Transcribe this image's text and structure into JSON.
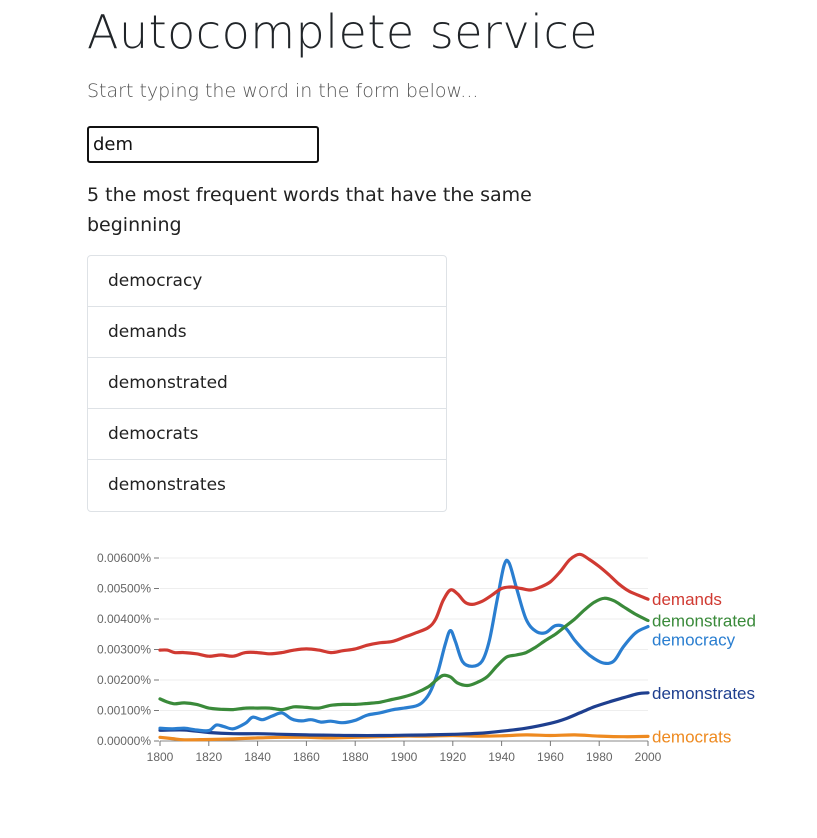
{
  "header": {
    "title": "Autocomplete service",
    "subtitle": "Start typing the word in the form below..."
  },
  "search": {
    "value": "dem",
    "placeholder": ""
  },
  "results": {
    "heading": "5 the most frequent words that have the same beginning",
    "items": [
      {
        "label": "democracy"
      },
      {
        "label": "demands"
      },
      {
        "label": "demonstrated"
      },
      {
        "label": "democrats"
      },
      {
        "label": "demonstrates"
      }
    ]
  },
  "chart_data": {
    "type": "line",
    "title": "",
    "xlabel": "",
    "ylabel": "",
    "xlim": [
      1800,
      2000
    ],
    "ylim": [
      0,
      0.006
    ],
    "x_ticks": [
      "1800",
      "1820",
      "1840",
      "1860",
      "1880",
      "1900",
      "1920",
      "1940",
      "1960",
      "1980",
      "2000"
    ],
    "y_ticks": [
      "0.00000%",
      "0.00100%",
      "0.00200%",
      "0.00300%",
      "0.00400%",
      "0.00500%",
      "0.00600%"
    ],
    "grid": true,
    "legend": "right",
    "series": [
      {
        "name": "demands",
        "color": "#d03a32",
        "points": [
          [
            1800,
            0.00298
          ],
          [
            1803,
            0.00298
          ],
          [
            1806,
            0.0029
          ],
          [
            1810,
            0.0029
          ],
          [
            1815,
            0.00286
          ],
          [
            1820,
            0.00278
          ],
          [
            1825,
            0.00282
          ],
          [
            1830,
            0.00278
          ],
          [
            1835,
            0.0029
          ],
          [
            1840,
            0.0029
          ],
          [
            1845,
            0.00286
          ],
          [
            1850,
            0.0029
          ],
          [
            1855,
            0.00298
          ],
          [
            1860,
            0.00302
          ],
          [
            1865,
            0.00298
          ],
          [
            1870,
            0.0029
          ],
          [
            1875,
            0.00296
          ],
          [
            1880,
            0.00302
          ],
          [
            1885,
            0.00314
          ],
          [
            1890,
            0.00322
          ],
          [
            1895,
            0.00326
          ],
          [
            1900,
            0.0034
          ],
          [
            1905,
            0.00355
          ],
          [
            1910,
            0.00372
          ],
          [
            1913,
            0.004
          ],
          [
            1916,
            0.0046
          ],
          [
            1919,
            0.00495
          ],
          [
            1922,
            0.00482
          ],
          [
            1925,
            0.00455
          ],
          [
            1928,
            0.00448
          ],
          [
            1932,
            0.00458
          ],
          [
            1936,
            0.00478
          ],
          [
            1940,
            0.005
          ],
          [
            1944,
            0.00505
          ],
          [
            1948,
            0.005
          ],
          [
            1952,
            0.00495
          ],
          [
            1956,
            0.00505
          ],
          [
            1960,
            0.00522
          ],
          [
            1964,
            0.00555
          ],
          [
            1968,
            0.00595
          ],
          [
            1972,
            0.00612
          ],
          [
            1976,
            0.00595
          ],
          [
            1980,
            0.00572
          ],
          [
            1984,
            0.00545
          ],
          [
            1988,
            0.00515
          ],
          [
            1992,
            0.00492
          ],
          [
            1996,
            0.00478
          ],
          [
            2000,
            0.00465
          ]
        ]
      },
      {
        "name": "demonstrated",
        "color": "#3a8a3a",
        "points": [
          [
            1800,
            0.00138
          ],
          [
            1803,
            0.00128
          ],
          [
            1806,
            0.00122
          ],
          [
            1810,
            0.00125
          ],
          [
            1815,
            0.0012
          ],
          [
            1820,
            0.00108
          ],
          [
            1825,
            0.00104
          ],
          [
            1830,
            0.00103
          ],
          [
            1835,
            0.00108
          ],
          [
            1840,
            0.00108
          ],
          [
            1845,
            0.00108
          ],
          [
            1850,
            0.00103
          ],
          [
            1855,
            0.00112
          ],
          [
            1860,
            0.0011
          ],
          [
            1865,
            0.00108
          ],
          [
            1870,
            0.00117
          ],
          [
            1875,
            0.0012
          ],
          [
            1880,
            0.0012
          ],
          [
            1885,
            0.00123
          ],
          [
            1890,
            0.00127
          ],
          [
            1895,
            0.00136
          ],
          [
            1900,
            0.00145
          ],
          [
            1905,
            0.00158
          ],
          [
            1910,
            0.00178
          ],
          [
            1913,
            0.00198
          ],
          [
            1916,
            0.00215
          ],
          [
            1919,
            0.0021
          ],
          [
            1922,
            0.0019
          ],
          [
            1926,
            0.00182
          ],
          [
            1930,
            0.00192
          ],
          [
            1934,
            0.0021
          ],
          [
            1938,
            0.00245
          ],
          [
            1942,
            0.00275
          ],
          [
            1946,
            0.00282
          ],
          [
            1950,
            0.0029
          ],
          [
            1954,
            0.00308
          ],
          [
            1958,
            0.0033
          ],
          [
            1962,
            0.0035
          ],
          [
            1966,
            0.00375
          ],
          [
            1970,
            0.004
          ],
          [
            1974,
            0.0043
          ],
          [
            1978,
            0.00455
          ],
          [
            1982,
            0.00468
          ],
          [
            1986,
            0.0046
          ],
          [
            1990,
            0.0044
          ],
          [
            1995,
            0.00415
          ],
          [
            2000,
            0.00395
          ]
        ]
      },
      {
        "name": "democracy",
        "color": "#2a7ed0",
        "points": [
          [
            1800,
            0.00042
          ],
          [
            1805,
            0.0004
          ],
          [
            1810,
            0.00042
          ],
          [
            1815,
            0.00036
          ],
          [
            1820,
            0.00034
          ],
          [
            1823,
            0.00052
          ],
          [
            1826,
            0.00048
          ],
          [
            1830,
            0.0004
          ],
          [
            1835,
            0.00058
          ],
          [
            1838,
            0.00078
          ],
          [
            1842,
            0.0007
          ],
          [
            1846,
            0.00082
          ],
          [
            1850,
            0.00092
          ],
          [
            1854,
            0.00072
          ],
          [
            1858,
            0.00066
          ],
          [
            1862,
            0.0007
          ],
          [
            1866,
            0.00062
          ],
          [
            1870,
            0.00065
          ],
          [
            1875,
            0.0006
          ],
          [
            1880,
            0.00068
          ],
          [
            1885,
            0.00085
          ],
          [
            1890,
            0.00092
          ],
          [
            1895,
            0.00102
          ],
          [
            1900,
            0.00108
          ],
          [
            1905,
            0.00115
          ],
          [
            1908,
            0.0013
          ],
          [
            1911,
            0.00165
          ],
          [
            1914,
            0.0023
          ],
          [
            1917,
            0.0032
          ],
          [
            1919,
            0.00362
          ],
          [
            1921,
            0.00328
          ],
          [
            1924,
            0.0026
          ],
          [
            1928,
            0.00245
          ],
          [
            1932,
            0.00262
          ],
          [
            1935,
            0.0033
          ],
          [
            1938,
            0.00455
          ],
          [
            1941,
            0.00575
          ],
          [
            1943,
            0.00585
          ],
          [
            1946,
            0.00505
          ],
          [
            1950,
            0.004
          ],
          [
            1954,
            0.0036
          ],
          [
            1958,
            0.00355
          ],
          [
            1962,
            0.00378
          ],
          [
            1966,
            0.00372
          ],
          [
            1970,
            0.0033
          ],
          [
            1974,
            0.00295
          ],
          [
            1978,
            0.0027
          ],
          [
            1982,
            0.00255
          ],
          [
            1986,
            0.00262
          ],
          [
            1990,
            0.0031
          ],
          [
            1995,
            0.00355
          ],
          [
            2000,
            0.00375
          ]
        ]
      },
      {
        "name": "demonstrates",
        "color": "#1e3f8f",
        "points": [
          [
            1800,
            0.00035
          ],
          [
            1810,
            0.00036
          ],
          [
            1820,
            0.00028
          ],
          [
            1830,
            0.00024
          ],
          [
            1840,
            0.00024
          ],
          [
            1850,
            0.00022
          ],
          [
            1860,
            0.0002
          ],
          [
            1870,
            0.00019
          ],
          [
            1880,
            0.00018
          ],
          [
            1890,
            0.00018
          ],
          [
            1900,
            0.00019
          ],
          [
            1910,
            0.0002
          ],
          [
            1920,
            0.00022
          ],
          [
            1930,
            0.00025
          ],
          [
            1940,
            0.00032
          ],
          [
            1950,
            0.00042
          ],
          [
            1960,
            0.00058
          ],
          [
            1966,
            0.00072
          ],
          [
            1972,
            0.00092
          ],
          [
            1978,
            0.00112
          ],
          [
            1984,
            0.00128
          ],
          [
            1990,
            0.00142
          ],
          [
            1996,
            0.00155
          ],
          [
            2000,
            0.00158
          ]
        ]
      },
      {
        "name": "democrats",
        "color": "#ee8a20",
        "points": [
          [
            1800,
            0.00012
          ],
          [
            1805,
            8e-05
          ],
          [
            1810,
            4e-05
          ],
          [
            1820,
            5e-05
          ],
          [
            1830,
            7e-05
          ],
          [
            1840,
            0.0001
          ],
          [
            1850,
            0.00012
          ],
          [
            1860,
            0.00012
          ],
          [
            1870,
            0.0001
          ],
          [
            1880,
            0.00012
          ],
          [
            1890,
            0.00014
          ],
          [
            1900,
            0.00016
          ],
          [
            1910,
            0.00016
          ],
          [
            1920,
            0.00018
          ],
          [
            1930,
            0.00016
          ],
          [
            1940,
            0.00017
          ],
          [
            1950,
            0.0002
          ],
          [
            1960,
            0.00018
          ],
          [
            1970,
            0.0002
          ],
          [
            1980,
            0.00016
          ],
          [
            1990,
            0.00014
          ],
          [
            2000,
            0.00015
          ]
        ]
      }
    ]
  }
}
